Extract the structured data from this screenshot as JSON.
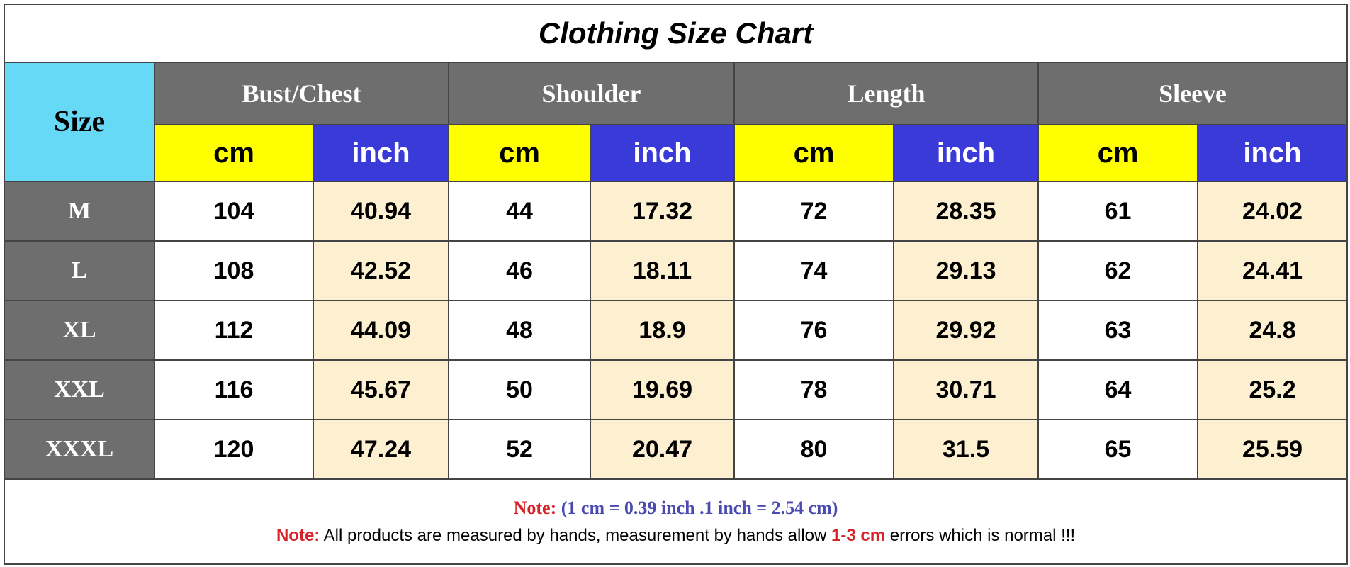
{
  "title": "Clothing Size Chart",
  "table": {
    "size_header": "Size",
    "groups": [
      "Bust/Chest",
      "Shoulder",
      "Length",
      "Sleeve"
    ],
    "units": [
      "cm",
      "inch",
      "cm",
      "inch",
      "cm",
      "inch",
      "cm",
      "inch"
    ],
    "rows": [
      [
        "M",
        104,
        40.94,
        44,
        17.32,
        72,
        28.35,
        61,
        24.02
      ],
      [
        "L",
        108,
        42.52,
        46,
        18.11,
        74,
        29.13,
        62,
        24.41
      ],
      [
        "XL",
        112,
        44.09,
        48,
        18.9,
        76,
        29.92,
        63,
        24.8
      ],
      [
        "XXL",
        116,
        45.67,
        50,
        19.69,
        78,
        30.71,
        64,
        25.2
      ],
      [
        "XXXL",
        120,
        47.24,
        52,
        20.47,
        80,
        31.5,
        65,
        25.59
      ]
    ]
  },
  "notes": [
    [
      "Note:",
      "(1 cm = 0.39 inch .1 inch = 2.54 cm)"
    ],
    [
      "Note:",
      " All products are measured by hands, measurement by hands allow ",
      "1-3 cm",
      " errors which is normal !!!"
    ]
  ]
}
